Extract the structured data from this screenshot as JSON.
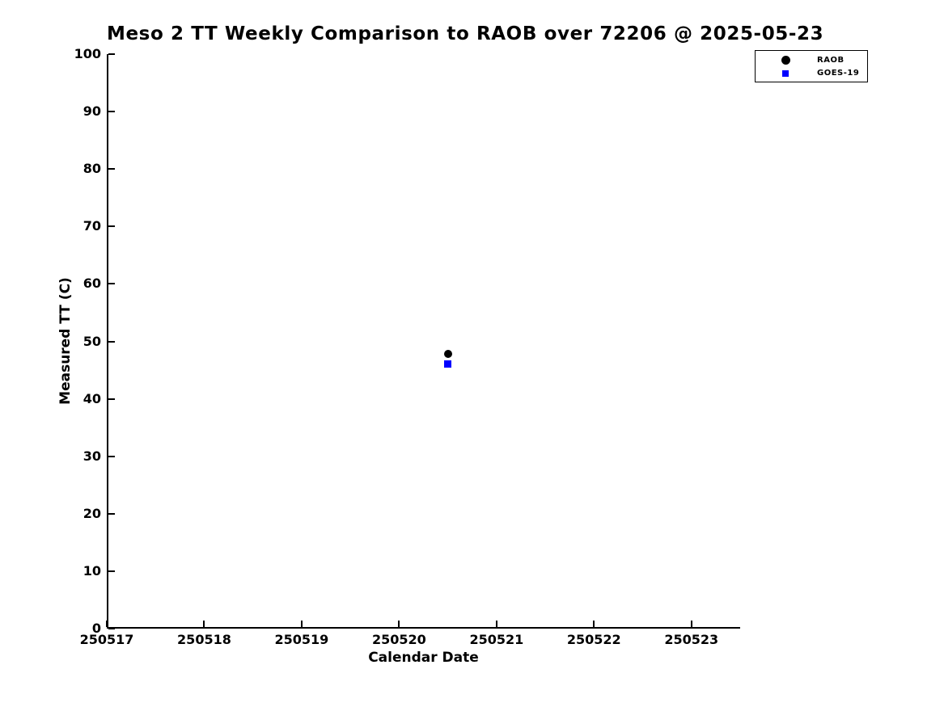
{
  "chart_data": {
    "type": "scatter",
    "title": "Meso 2 TT Weekly Comparison to RAOB over 72206 @ 2025-05-23",
    "xlabel": "Calendar Date",
    "ylabel": "Measured TT (C)",
    "xlim": [
      250517,
      250523.5
    ],
    "ylim": [
      0,
      100
    ],
    "xticks": [
      "250517",
      "250518",
      "250519",
      "250520",
      "250521",
      "250522",
      "250523"
    ],
    "yticks": [
      0,
      10,
      20,
      30,
      40,
      50,
      60,
      70,
      80,
      90,
      100
    ],
    "grid": false,
    "background_color": "#ffffff",
    "axis_color": "#000000",
    "legend": {
      "position": "upper-right-outside",
      "border_color": "#000000",
      "background": "#ffffff"
    },
    "series": [
      {
        "name": "RAOB",
        "marker": "circle",
        "color": "#000000",
        "marker_size": 10,
        "points": [
          {
            "x": 250520.5,
            "y": 47.8
          }
        ]
      },
      {
        "name": "GOES-19",
        "marker": "square",
        "color": "#0000ff",
        "marker_size": 9,
        "points": [
          {
            "x": 250520.5,
            "y": 46.1
          }
        ]
      }
    ]
  }
}
